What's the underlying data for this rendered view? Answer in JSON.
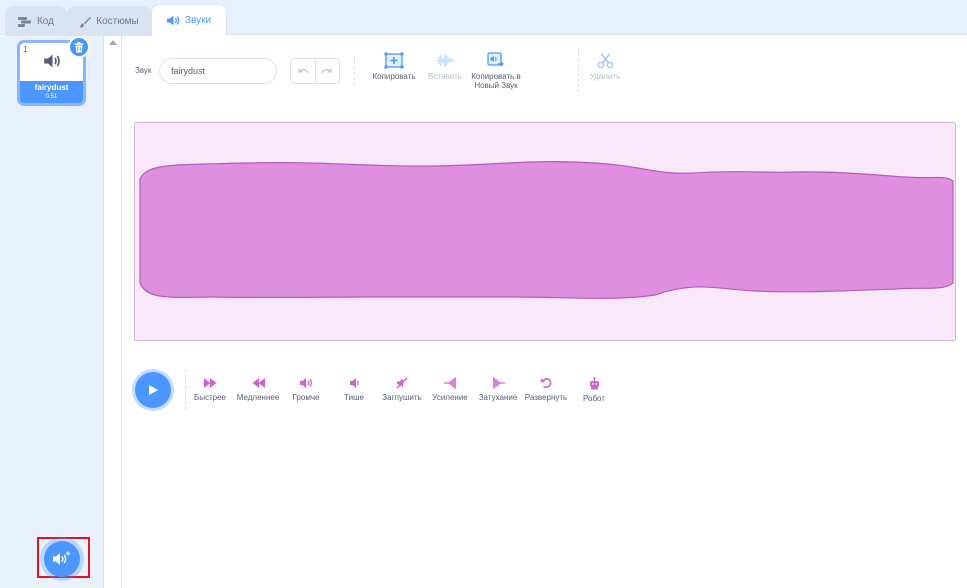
{
  "tabs": [
    {
      "label": "Код",
      "icon": "code-blocks-icon"
    },
    {
      "label": "Костюмы",
      "icon": "paintbrush-icon"
    },
    {
      "label": "Звуки",
      "icon": "speaker-icon"
    }
  ],
  "sound_list": {
    "items": [
      {
        "index": "1",
        "name": "fairydust",
        "duration": "0.51"
      }
    ],
    "delete_icon": "trash-icon",
    "add_button_icon": "add-sound-icon"
  },
  "editor": {
    "sound_label": "Звук",
    "sound_name": "fairydust",
    "toolbar": {
      "copy_label": "Копировать",
      "paste_label": "Вставить",
      "copy_new_label_line1": "Копировать в",
      "copy_new_label_line2": "Новый Звук",
      "delete_label": "Удалить"
    }
  },
  "effects": [
    {
      "label": "Быстрее",
      "icon": "faster-icon"
    },
    {
      "label": "Медленнее",
      "icon": "slower-icon"
    },
    {
      "label": "Громче",
      "icon": "louder-icon"
    },
    {
      "label": "Тише",
      "icon": "softer-icon"
    },
    {
      "label": "Заглушить",
      "icon": "mute-icon"
    },
    {
      "label": "Усиление",
      "icon": "fade-in-icon"
    },
    {
      "label": "Затухание",
      "icon": "fade-out-icon"
    },
    {
      "label": "Развернуть",
      "icon": "reverse-icon"
    },
    {
      "label": "Робот",
      "icon": "robot-icon"
    }
  ],
  "colors": {
    "accent": "#4c97ff",
    "wave_fill": "#df8fdf",
    "wave_stroke": "#b45bb7",
    "wave_bg": "#f9e8f9",
    "effect_icon": "#cf63cf",
    "highlight_box": "#e0141e"
  }
}
